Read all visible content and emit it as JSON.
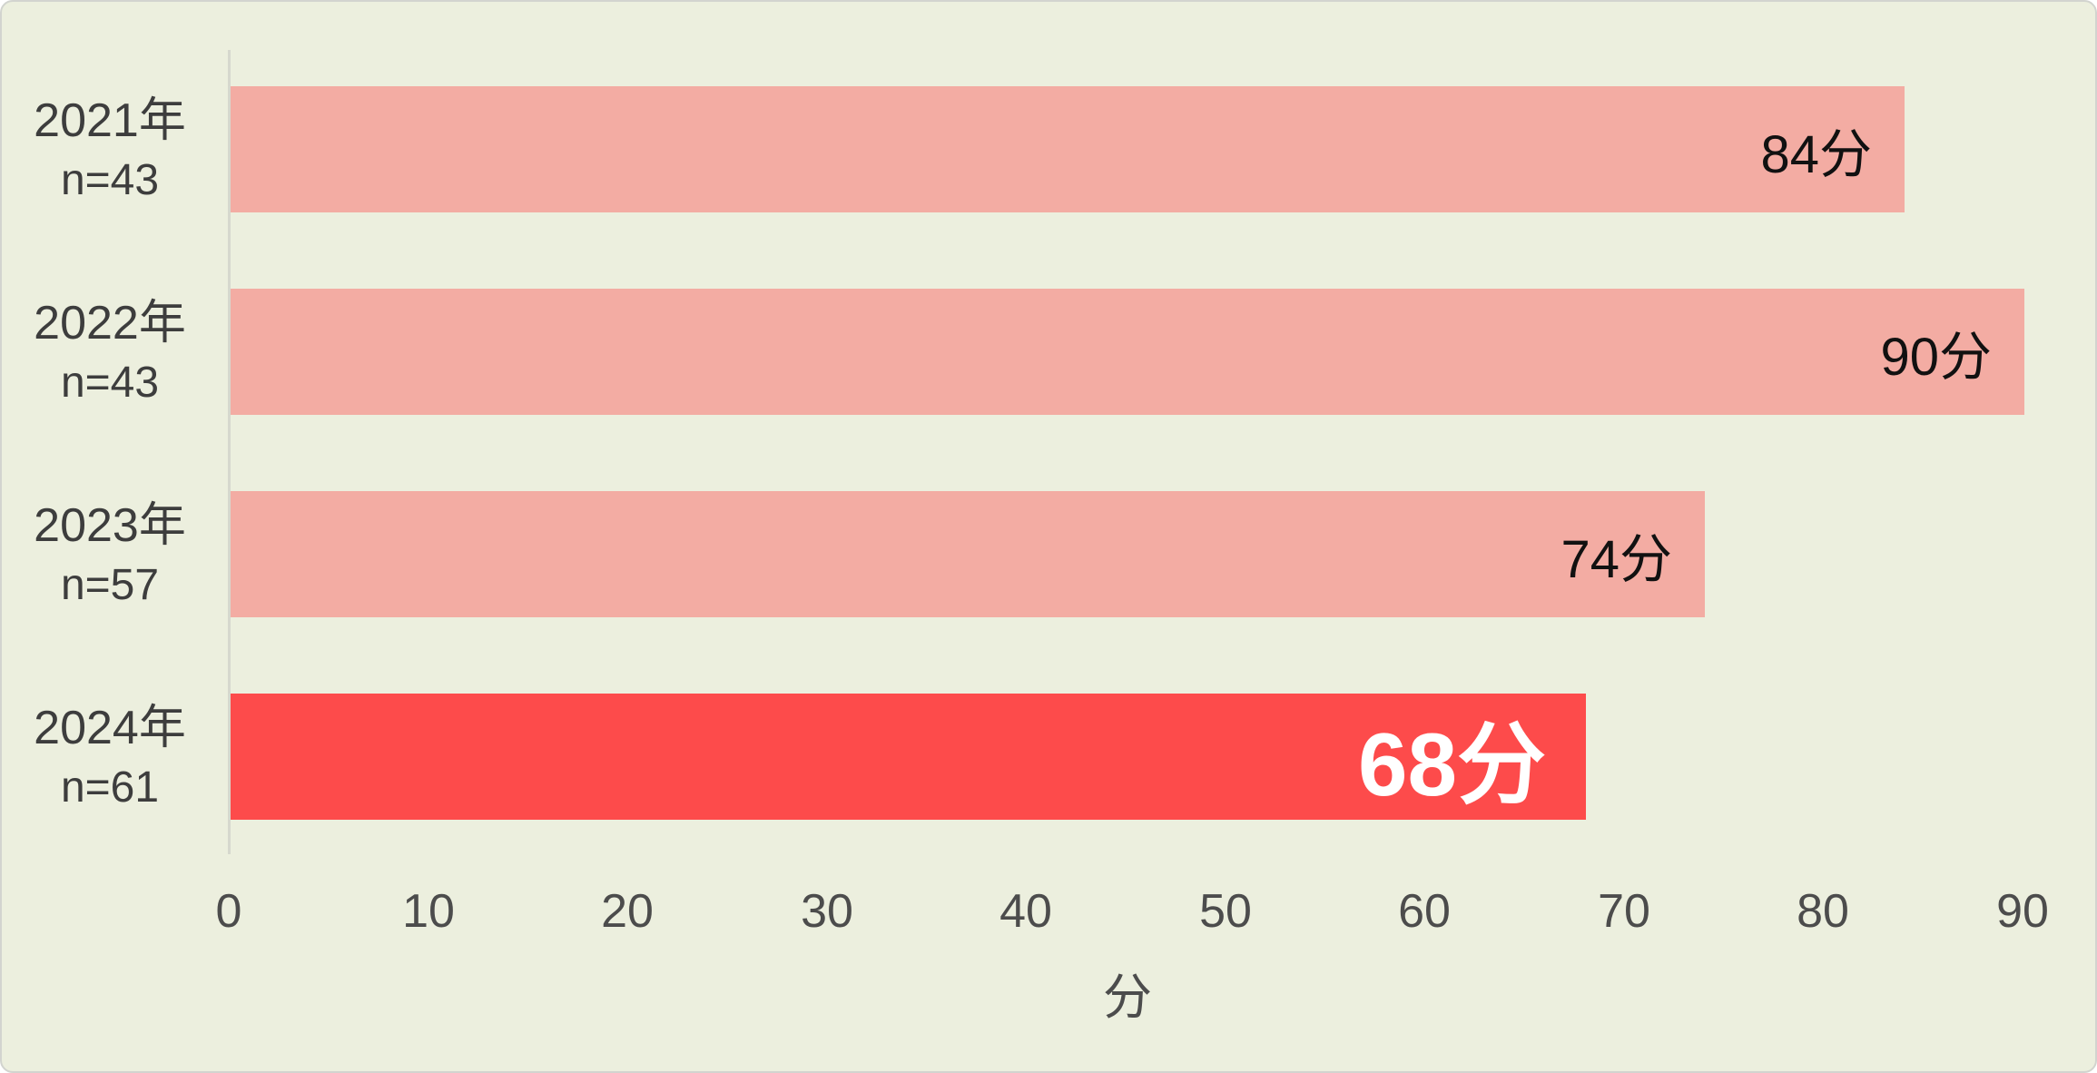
{
  "chart_data": {
    "type": "bar",
    "orientation": "horizontal",
    "categories": [
      "2021年",
      "2022年",
      "2023年",
      "2024年"
    ],
    "category_sublabels": [
      "n=43",
      "n=43",
      "n=57",
      "n=61"
    ],
    "values": [
      84,
      90,
      74,
      68
    ],
    "value_labels": [
      "84分",
      "90分",
      "74分",
      "68分"
    ],
    "highlight_index": 3,
    "xlabel": "分",
    "xlim": [
      0,
      90
    ],
    "x_ticks": [
      "0",
      "10",
      "20",
      "30",
      "40",
      "50",
      "60",
      "70",
      "80",
      "90"
    ],
    "grid": "off",
    "legend": "none",
    "colors": {
      "bar": "#f3aca3",
      "highlight_bar": "#fd4b4b",
      "background": "#ecefde",
      "axis_line": "#d6d8ce",
      "category_text": "#3d3d3d",
      "tick_text": "#4c4c4c",
      "value_text": "#111111",
      "highlight_value_text": "#ffffff"
    }
  }
}
